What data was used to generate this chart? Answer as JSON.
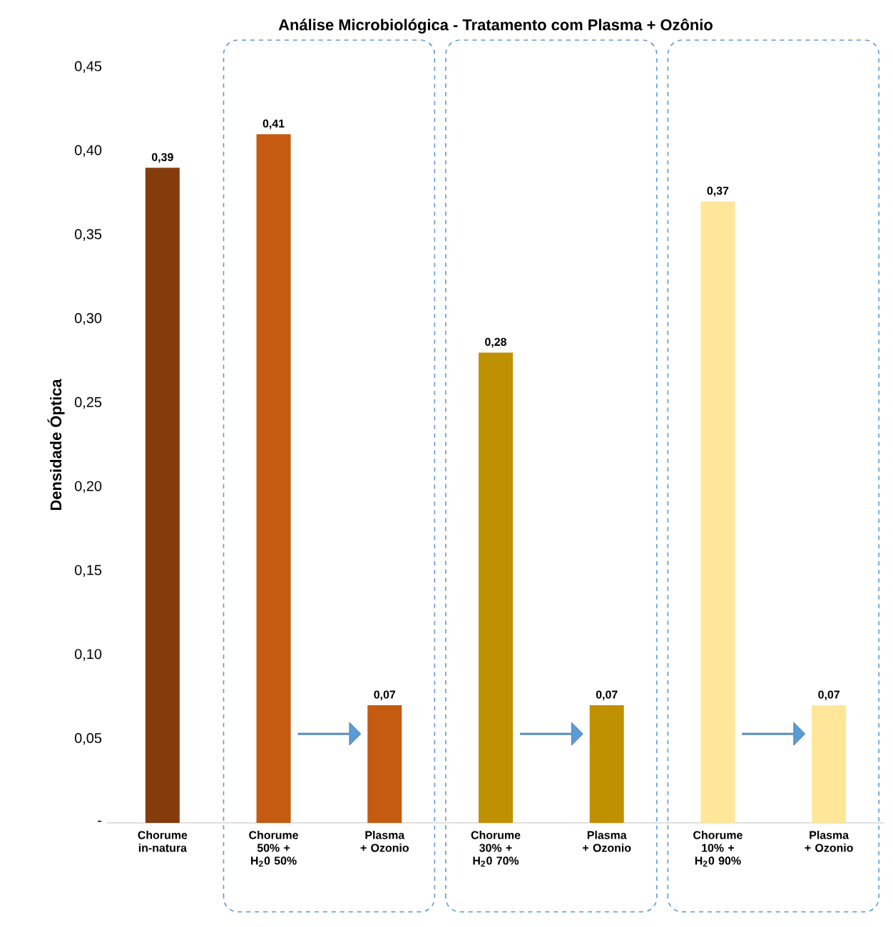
{
  "chart_data": {
    "type": "bar",
    "title": "Análise Microbiológica - Tratamento com Plasma + Ozônio",
    "ylabel": "Densidade Óptica",
    "categories": [
      "Chorume in-natura",
      "Chorume 50% + H$_{2}$0 50%",
      "Plasma + Ozonio",
      "Chorume 30% + H$_{2}$0 70%",
      "Plasma + Ozonio",
      "Chorume 10% + H$_{2}$0 90%",
      "Plasma + Ozonio"
    ],
    "values": [
      0.39,
      0.41,
      0.07,
      0.28,
      0.07,
      0.37,
      0.07
    ],
    "value_labels": [
      "0,39",
      "0,41",
      "0,07",
      "0,28",
      "0,07",
      "0,37",
      "0,07"
    ],
    "colors": [
      "#843c0c",
      "#c55a11",
      "#c55a11",
      "#bf9000",
      "#bf9000",
      "#ffe699",
      "#ffe699"
    ],
    "ylim": [
      0,
      0.45
    ],
    "yticks": [
      {
        "value": 0,
        "label": "-"
      },
      {
        "value": 0.05,
        "label": "0,05"
      },
      {
        "value": 0.1,
        "label": "0,10"
      },
      {
        "value": 0.15,
        "label": "0,15"
      },
      {
        "value": 0.2,
        "label": "0,20"
      },
      {
        "value": 0.25,
        "label": "0,25"
      },
      {
        "value": 0.3,
        "label": "0,30"
      },
      {
        "value": 0.35,
        "label": "0,35"
      },
      {
        "value": 0.4,
        "label": "0,40"
      },
      {
        "value": 0.45,
        "label": "0,45"
      }
    ],
    "grid": false
  }
}
